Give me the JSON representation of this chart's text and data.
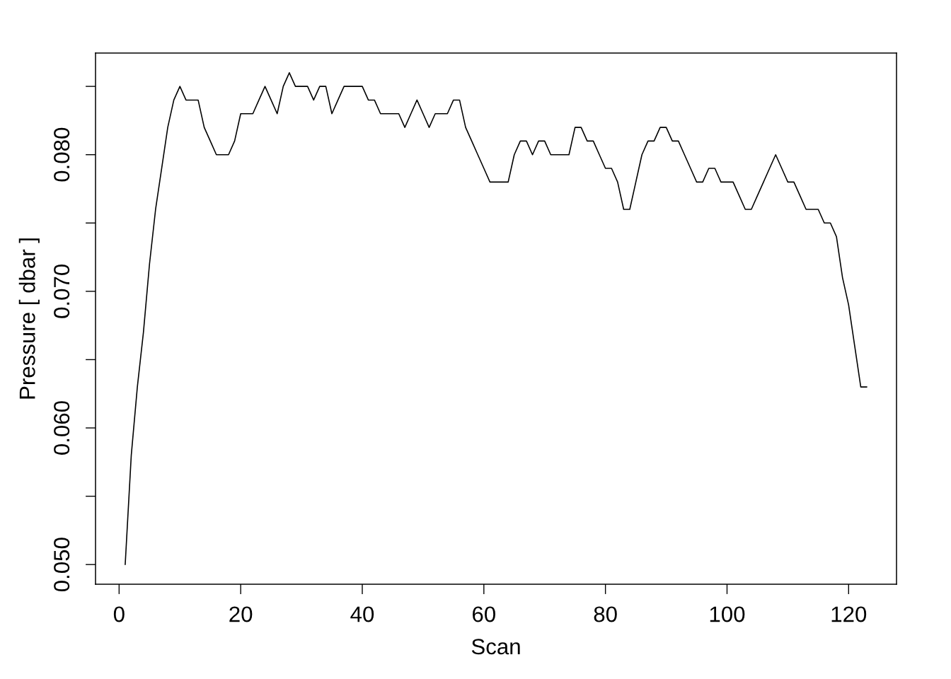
{
  "chart_data": {
    "type": "line",
    "xlabel": "Scan",
    "ylabel": "Pressure [ dbar ]",
    "x": [
      1,
      2,
      3,
      4,
      5,
      6,
      7,
      8,
      9,
      10,
      11,
      12,
      13,
      14,
      15,
      16,
      17,
      18,
      19,
      20,
      21,
      22,
      23,
      24,
      25,
      26,
      27,
      28,
      29,
      30,
      31,
      32,
      33,
      34,
      35,
      36,
      37,
      38,
      39,
      40,
      41,
      42,
      43,
      44,
      45,
      46,
      47,
      48,
      49,
      50,
      51,
      52,
      53,
      54,
      55,
      56,
      57,
      58,
      59,
      60,
      61,
      62,
      63,
      64,
      65,
      66,
      67,
      68,
      69,
      70,
      71,
      72,
      73,
      74,
      75,
      76,
      77,
      78,
      79,
      80,
      81,
      82,
      83,
      84,
      85,
      86,
      87,
      88,
      89,
      90,
      91,
      92,
      93,
      94,
      95,
      96,
      97,
      98,
      99,
      100,
      101,
      102,
      103,
      104,
      105,
      106,
      107,
      108,
      109,
      110,
      111,
      112,
      113,
      114,
      115,
      116,
      117,
      118,
      119,
      120,
      121,
      122,
      123
    ],
    "series": [
      {
        "color": "#000000",
        "values": [
          0.05,
          0.058,
          0.063,
          0.067,
          0.072,
          0.076,
          0.079,
          0.082,
          0.084,
          0.085,
          0.084,
          0.084,
          0.084,
          0.082,
          0.081,
          0.08,
          0.08,
          0.08,
          0.081,
          0.083,
          0.083,
          0.083,
          0.084,
          0.085,
          0.084,
          0.083,
          0.085,
          0.086,
          0.085,
          0.085,
          0.085,
          0.084,
          0.085,
          0.085,
          0.083,
          0.084,
          0.085,
          0.085,
          0.085,
          0.085,
          0.084,
          0.084,
          0.083,
          0.083,
          0.083,
          0.083,
          0.082,
          0.083,
          0.084,
          0.083,
          0.082,
          0.083,
          0.083,
          0.083,
          0.084,
          0.084,
          0.082,
          0.081,
          0.08,
          0.079,
          0.078,
          0.078,
          0.078,
          0.078,
          0.08,
          0.081,
          0.081,
          0.08,
          0.081,
          0.081,
          0.08,
          0.08,
          0.08,
          0.08,
          0.082,
          0.082,
          0.081,
          0.081,
          0.08,
          0.079,
          0.079,
          0.078,
          0.076,
          0.076,
          0.078,
          0.08,
          0.081,
          0.081,
          0.082,
          0.082,
          0.081,
          0.081,
          0.08,
          0.079,
          0.078,
          0.078,
          0.079,
          0.079,
          0.078,
          0.078,
          0.078,
          0.077,
          0.076,
          0.076,
          0.077,
          0.078,
          0.079,
          0.08,
          0.079,
          0.078,
          0.078,
          0.077,
          0.076,
          0.076,
          0.076,
          0.075,
          0.075,
          0.074,
          0.071,
          0.069,
          0.066,
          0.063,
          0.063
        ]
      }
    ],
    "xlim": [
      -3.88,
      127.88
    ],
    "ylim": [
      0.04856,
      0.08744
    ],
    "xticks": [
      0,
      20,
      40,
      60,
      80,
      100,
      120
    ],
    "yticks": [
      {
        "value": 0.05,
        "label": "0.050"
      },
      {
        "value": 0.055,
        "label": null
      },
      {
        "value": 0.06,
        "label": "0.060"
      },
      {
        "value": 0.065,
        "label": null
      },
      {
        "value": 0.07,
        "label": "0.070"
      },
      {
        "value": 0.075,
        "label": null
      },
      {
        "value": 0.08,
        "label": "0.080"
      },
      {
        "value": 0.085,
        "label": null
      }
    ],
    "line_style": "solid",
    "marker": "none"
  }
}
